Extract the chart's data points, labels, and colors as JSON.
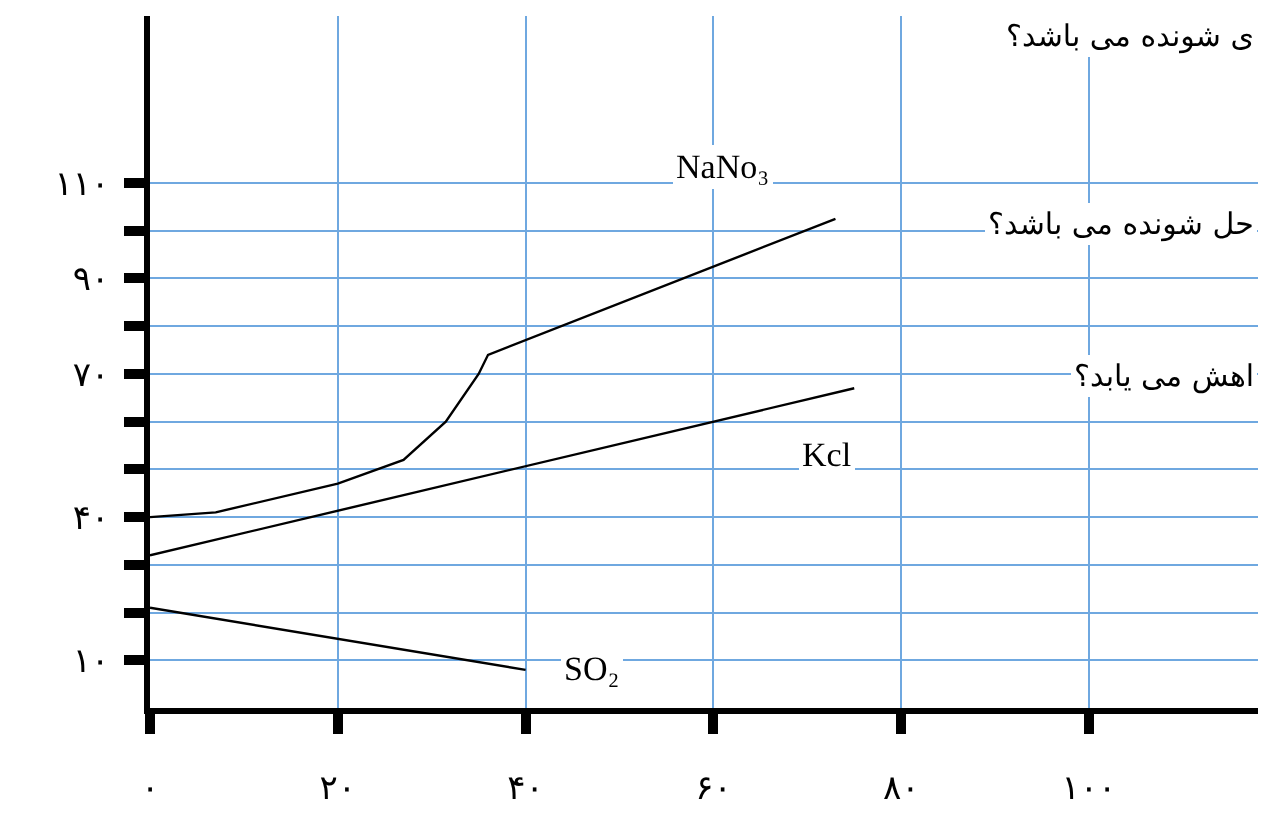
{
  "chart_data": {
    "type": "line",
    "xlim": [
      0,
      118
    ],
    "ylim": [
      0,
      145
    ],
    "xticks": [
      {
        "value": 0,
        "label": "۰"
      },
      {
        "value": 20,
        "label": "۲۰"
      },
      {
        "value": 40,
        "label": "۴۰"
      },
      {
        "value": 60,
        "label": "۶۰"
      },
      {
        "value": 80,
        "label": "۸۰"
      },
      {
        "value": 100,
        "label": "۱۰۰"
      }
    ],
    "yticks": [
      {
        "value": 10,
        "label": "۱۰"
      },
      {
        "value": 20,
        "label": null
      },
      {
        "value": 30,
        "label": null
      },
      {
        "value": 40,
        "label": "۴۰"
      },
      {
        "value": 50,
        "label": null
      },
      {
        "value": 60,
        "label": null
      },
      {
        "value": 70,
        "label": "۷۰"
      },
      {
        "value": 80,
        "label": null
      },
      {
        "value": 90,
        "label": "۹۰"
      },
      {
        "value": 100,
        "label": null
      },
      {
        "value": 110,
        "label": "۱۱۰"
      }
    ],
    "grid": true,
    "legend": false,
    "marker": "none",
    "line_style": "solid",
    "series": [
      {
        "name": "NaNo₃",
        "color": "#000000",
        "x": [
          0,
          7,
          20,
          27,
          31.5,
          35,
          36,
          73
        ],
        "values": [
          40,
          41,
          47,
          52,
          60,
          70,
          74,
          102.5
        ]
      },
      {
        "name": "Kcl",
        "color": "#000000",
        "x": [
          0,
          75
        ],
        "values": [
          32,
          67
        ]
      },
      {
        "name": "SO₂",
        "color": "#000000",
        "x": [
          0,
          40
        ],
        "values": [
          21,
          8
        ]
      }
    ],
    "annotations": [
      "ی شونده می باشد؟",
      "حل شونده می باشد؟",
      "اهش می یابد؟"
    ]
  }
}
